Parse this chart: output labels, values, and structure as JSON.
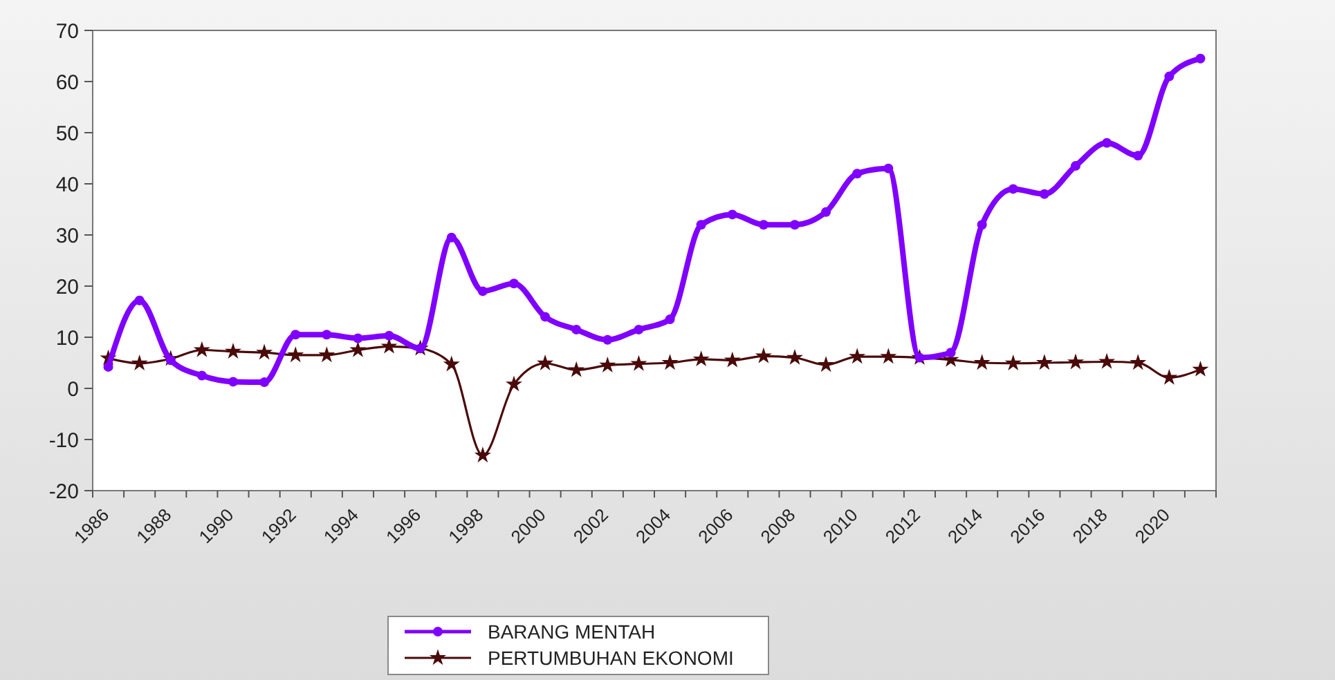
{
  "chart_data": {
    "type": "line",
    "categories": [
      "1986",
      null,
      "1988",
      null,
      "1990",
      null,
      "1992",
      null,
      "1994",
      null,
      "1996",
      null,
      "1998",
      null,
      "2000",
      null,
      "2002",
      null,
      "2004",
      null,
      "2006",
      null,
      "2008",
      null,
      "2010",
      null,
      "2012",
      null,
      "2014",
      null,
      "2016",
      null,
      "2018",
      null,
      "2020",
      null
    ],
    "series": [
      {
        "name": "BARANG MENTAH",
        "color": "#8000ff",
        "marker": "circle",
        "values": [
          4.2,
          17.2,
          5.5,
          2.5,
          1.3,
          1.2,
          10.5,
          10.5,
          9.8,
          10.3,
          7.8,
          29.5,
          19,
          20.5,
          14,
          11.5,
          9.5,
          11.5,
          13.5,
          32,
          34,
          32,
          32,
          34.5,
          42,
          43,
          6,
          7,
          32,
          39,
          38,
          43.5,
          48,
          45.5,
          61,
          64.5
        ]
      },
      {
        "name": "PERTUMBUHAN EKONOMI",
        "color": "#4a0a0a",
        "marker": "star",
        "values": [
          5.9,
          4.9,
          5.8,
          7.5,
          7.2,
          7.0,
          6.5,
          6.5,
          7.5,
          8.2,
          7.8,
          4.7,
          -13.1,
          0.8,
          4.9,
          3.6,
          4.5,
          4.8,
          5.0,
          5.7,
          5.5,
          6.3,
          6.0,
          4.6,
          6.2,
          6.2,
          6.0,
          5.6,
          5.0,
          4.9,
          5.0,
          5.1,
          5.2,
          5.0,
          2.1,
          3.7
        ]
      }
    ],
    "ylim": [
      -20,
      70
    ],
    "yticks": [
      -20,
      -10,
      0,
      10,
      20,
      30,
      40,
      50,
      60,
      70
    ],
    "grid": false,
    "legend": "bottom",
    "line_style": "solid"
  }
}
